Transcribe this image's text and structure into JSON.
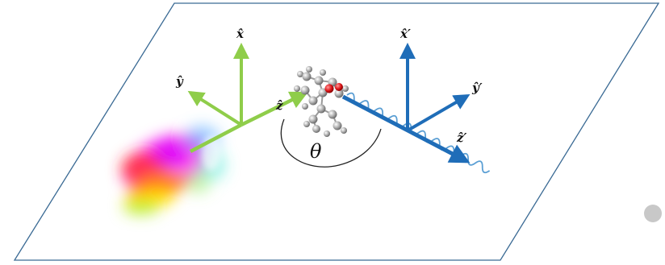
{
  "labels": {
    "lab_x": "x̂",
    "lab_y": "ŷ",
    "lab_z": "ẑ",
    "prime_x": "x̂′",
    "prime_y": "ŷ′",
    "prime_z": "ẑ′",
    "angle": "θ"
  },
  "colors": {
    "lab_frame": "#8fcd4a",
    "molecule_frame": "#1f6db8",
    "plane_edge": "#3a6a94",
    "wave": "#5b9fd4",
    "angle_arc": "#222222",
    "dot": "#c8c8c8"
  },
  "icons": {
    "molecule": "molecule-icon",
    "rainbow_beam": "rainbow-beam-icon"
  }
}
